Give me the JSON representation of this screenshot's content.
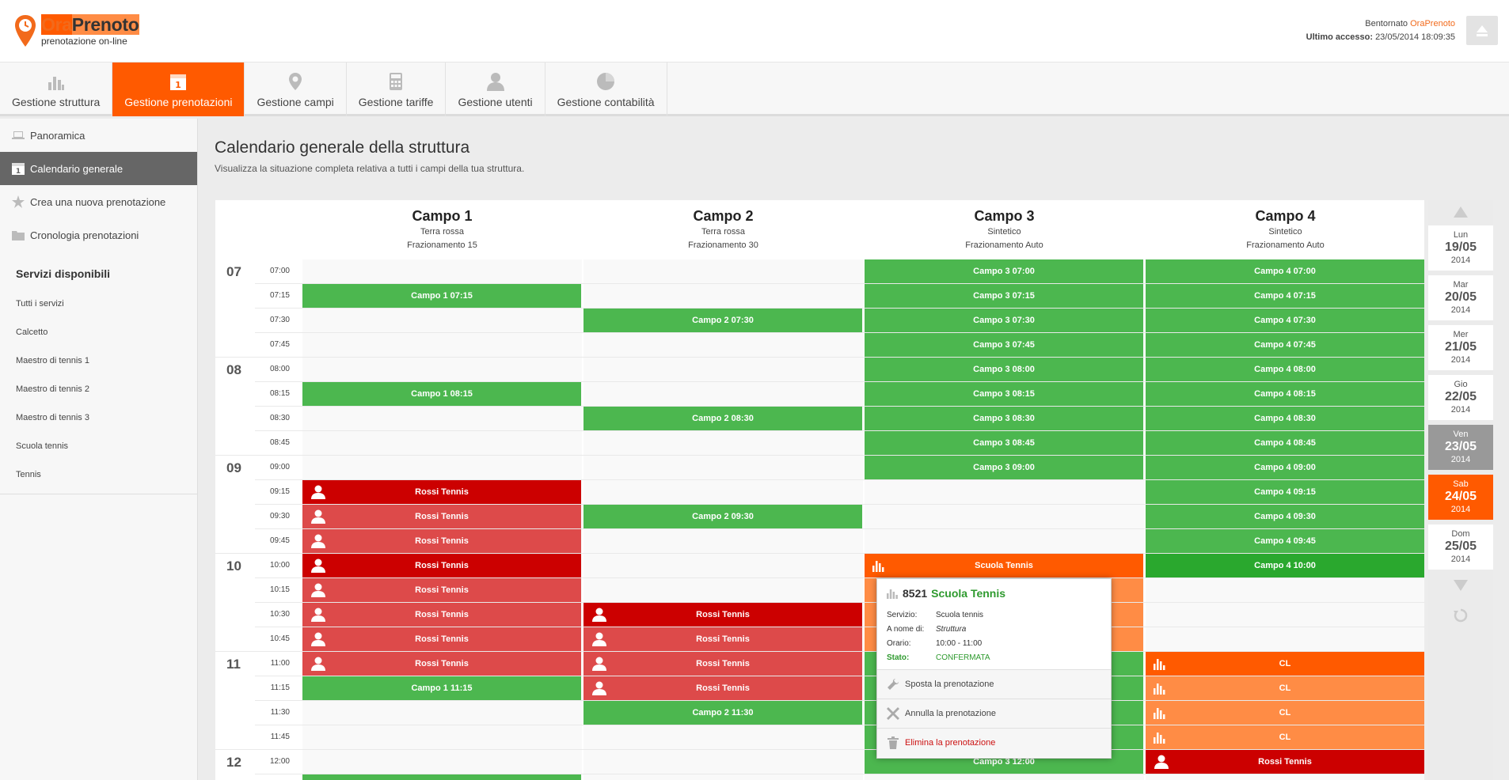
{
  "header": {
    "logo_part1": "Ora",
    "logo_part2": "Prenoto",
    "logo_sub": "prenotazione on-line",
    "welcome_label": "Bentornato",
    "welcome_name": "OraPrenoto",
    "last_access_label": "Ultimo accesso:",
    "last_access_value": "23/05/2014 18:09:35"
  },
  "nav": [
    {
      "label": "Gestione struttura",
      "icon": "bar-chart-icon"
    },
    {
      "label": "Gestione prenotazioni",
      "icon": "calendar-icon"
    },
    {
      "label": "Gestione campi",
      "icon": "map-pin-icon"
    },
    {
      "label": "Gestione tariffe",
      "icon": "calculator-icon"
    },
    {
      "label": "Gestione utenti",
      "icon": "user-icon"
    },
    {
      "label": "Gestione contabilità",
      "icon": "pie-chart-icon"
    }
  ],
  "sidebar": {
    "items": [
      {
        "label": "Panoramica",
        "icon": "laptop-icon"
      },
      {
        "label": "Calendario generale",
        "icon": "calendar-icon"
      },
      {
        "label": "Crea una nuova prenotazione",
        "icon": "star-icon"
      },
      {
        "label": "Cronologia prenotazioni",
        "icon": "folder-icon"
      }
    ],
    "services_title": "Servizi disponibili",
    "services": [
      "Tutti i servizi",
      "Calcetto",
      "Maestro di tennis 1",
      "Maestro di tennis 2",
      "Maestro di tennis 3",
      "Scuola tennis",
      "Tennis"
    ]
  },
  "main": {
    "title": "Calendario generale della struttura",
    "description": "Visualizza la situazione completa relativa a tutti i campi della tua struttura."
  },
  "courts": [
    {
      "name": "Campo 1",
      "surface": "Terra rossa",
      "split": "Frazionamento 15"
    },
    {
      "name": "Campo 2",
      "surface": "Terra rossa",
      "split": "Frazionamento 30"
    },
    {
      "name": "Campo 3",
      "surface": "Sintetico",
      "split": "Frazionamento Auto"
    },
    {
      "name": "Campo 4",
      "surface": "Sintetico",
      "split": "Frazionamento Auto"
    }
  ],
  "hours": [
    "07",
    "08",
    "09",
    "10",
    "11",
    "12"
  ],
  "slots": [
    "07:00",
    "07:15",
    "07:30",
    "07:45",
    "08:00",
    "08:15",
    "08:30",
    "08:45",
    "09:00",
    "09:15",
    "09:30",
    "09:45",
    "10:00",
    "10:15",
    "10:30",
    "10:45",
    "11:00",
    "11:15",
    "11:30",
    "11:45",
    "12:00"
  ],
  "bookings": [
    {
      "court": 1,
      "slot": 1,
      "label": "Campo 1 07:15",
      "color": "g"
    },
    {
      "court": 1,
      "slot": 5,
      "label": "Campo 1 08:15",
      "color": "g"
    },
    {
      "court": 1,
      "slot": 9,
      "label": "Rossi Tennis",
      "color": "r1",
      "icon": "user"
    },
    {
      "court": 1,
      "slot": 10,
      "label": "Rossi Tennis",
      "color": "r2",
      "icon": "user"
    },
    {
      "court": 1,
      "slot": 11,
      "label": "Rossi Tennis",
      "color": "r2",
      "icon": "user"
    },
    {
      "court": 1,
      "slot": 12,
      "label": "Rossi Tennis",
      "color": "r1",
      "icon": "user"
    },
    {
      "court": 1,
      "slot": 13,
      "label": "Rossi Tennis",
      "color": "r2",
      "icon": "user"
    },
    {
      "court": 1,
      "slot": 14,
      "label": "Rossi Tennis",
      "color": "r2",
      "icon": "user"
    },
    {
      "court": 1,
      "slot": 15,
      "label": "Rossi Tennis",
      "color": "r2",
      "icon": "user"
    },
    {
      "court": 1,
      "slot": 16,
      "label": "Rossi Tennis",
      "color": "r2",
      "icon": "user"
    },
    {
      "court": 1,
      "slot": 17,
      "label": "Campo 1 11:15",
      "color": "g"
    },
    {
      "court": 1,
      "slot": 21,
      "label": "",
      "color": "g"
    },
    {
      "court": 2,
      "slot": 2,
      "label": "Campo 2 07:30",
      "color": "g"
    },
    {
      "court": 2,
      "slot": 6,
      "label": "Campo 2 08:30",
      "color": "g"
    },
    {
      "court": 2,
      "slot": 10,
      "label": "Campo 2 09:30",
      "color": "g"
    },
    {
      "court": 2,
      "slot": 14,
      "label": "Rossi Tennis",
      "color": "r1",
      "icon": "user"
    },
    {
      "court": 2,
      "slot": 15,
      "label": "Rossi Tennis",
      "color": "r2",
      "icon": "user"
    },
    {
      "court": 2,
      "slot": 16,
      "label": "Rossi Tennis",
      "color": "r2",
      "icon": "user"
    },
    {
      "court": 2,
      "slot": 17,
      "label": "Rossi Tennis",
      "color": "r2",
      "icon": "user"
    },
    {
      "court": 2,
      "slot": 18,
      "label": "Campo 2 11:30",
      "color": "g"
    },
    {
      "court": 3,
      "slot": 0,
      "label": "Campo 3 07:00",
      "color": "g"
    },
    {
      "court": 3,
      "slot": 1,
      "label": "Campo 3 07:15",
      "color": "g"
    },
    {
      "court": 3,
      "slot": 2,
      "label": "Campo 3 07:30",
      "color": "g"
    },
    {
      "court": 3,
      "slot": 3,
      "label": "Campo 3 07:45",
      "color": "g"
    },
    {
      "court": 3,
      "slot": 4,
      "label": "Campo 3 08:00",
      "color": "g"
    },
    {
      "court": 3,
      "slot": 5,
      "label": "Campo 3 08:15",
      "color": "g"
    },
    {
      "court": 3,
      "slot": 6,
      "label": "Campo 3 08:30",
      "color": "g"
    },
    {
      "court": 3,
      "slot": 7,
      "label": "Campo 3 08:45",
      "color": "g"
    },
    {
      "court": 3,
      "slot": 8,
      "label": "Campo 3 09:00",
      "color": "g"
    },
    {
      "court": 3,
      "slot": 12,
      "label": "Scuola Tennis",
      "color": "o1",
      "icon": "bars"
    },
    {
      "court": 3,
      "slot": 13,
      "label": "",
      "color": "o2"
    },
    {
      "court": 3,
      "slot": 14,
      "label": "",
      "color": "o2"
    },
    {
      "court": 3,
      "slot": 15,
      "label": "",
      "color": "o2"
    },
    {
      "court": 3,
      "slot": 16,
      "label": "",
      "color": "g"
    },
    {
      "court": 3,
      "slot": 17,
      "label": "",
      "color": "g"
    },
    {
      "court": 3,
      "slot": 18,
      "label": "",
      "color": "g"
    },
    {
      "court": 3,
      "slot": 19,
      "label": "",
      "color": "g"
    },
    {
      "court": 3,
      "slot": 20,
      "label": "Campo 3 12:00",
      "color": "g"
    },
    {
      "court": 4,
      "slot": 0,
      "label": "Campo 4 07:00",
      "color": "g"
    },
    {
      "court": 4,
      "slot": 1,
      "label": "Campo 4 07:15",
      "color": "g"
    },
    {
      "court": 4,
      "slot": 2,
      "label": "Campo 4 07:30",
      "color": "g"
    },
    {
      "court": 4,
      "slot": 3,
      "label": "Campo 4 07:45",
      "color": "g"
    },
    {
      "court": 4,
      "slot": 4,
      "label": "Campo 4 08:00",
      "color": "g"
    },
    {
      "court": 4,
      "slot": 5,
      "label": "Campo 4 08:15",
      "color": "g"
    },
    {
      "court": 4,
      "slot": 6,
      "label": "Campo 4 08:30",
      "color": "g"
    },
    {
      "court": 4,
      "slot": 7,
      "label": "Campo 4 08:45",
      "color": "g"
    },
    {
      "court": 4,
      "slot": 8,
      "label": "Campo 4 09:00",
      "color": "g"
    },
    {
      "court": 4,
      "slot": 9,
      "label": "Campo 4 09:15",
      "color": "g"
    },
    {
      "court": 4,
      "slot": 10,
      "label": "Campo 4 09:30",
      "color": "g"
    },
    {
      "court": 4,
      "slot": 11,
      "label": "Campo 4 09:45",
      "color": "g"
    },
    {
      "court": 4,
      "slot": 12,
      "label": "Campo 4 10:00",
      "color": "g2"
    },
    {
      "court": 4,
      "slot": 16,
      "label": "CL",
      "color": "o1",
      "icon": "bars"
    },
    {
      "court": 4,
      "slot": 17,
      "label": "CL",
      "color": "o2",
      "icon": "bars"
    },
    {
      "court": 4,
      "slot": 18,
      "label": "CL",
      "color": "o2",
      "icon": "bars"
    },
    {
      "court": 4,
      "slot": 19,
      "label": "CL",
      "color": "o2",
      "icon": "bars"
    },
    {
      "court": 4,
      "slot": 20,
      "label": "Rossi Tennis",
      "color": "r1",
      "icon": "user"
    }
  ],
  "popup": {
    "number": "8521",
    "service_title": "Scuola Tennis",
    "service_label": "Servizio:",
    "service_value": "Scuola tennis",
    "owner_label": "A nome di:",
    "owner_value": "Struttura",
    "time_label": "Orario:",
    "time_value": "10:00 - 11:00",
    "status_label": "Stato:",
    "status_value": "CONFERMATA",
    "move_label": "Sposta la prenotazione",
    "cancel_label": "Annulla la prenotazione",
    "delete_label": "Elimina la prenotazione"
  },
  "days": [
    {
      "name": "Lun",
      "date": "19/05",
      "year": "2014"
    },
    {
      "name": "Mar",
      "date": "20/05",
      "year": "2014"
    },
    {
      "name": "Mer",
      "date": "21/05",
      "year": "2014"
    },
    {
      "name": "Gio",
      "date": "22/05",
      "year": "2014"
    },
    {
      "name": "Ven",
      "date": "23/05",
      "year": "2014",
      "state": "today"
    },
    {
      "name": "Sab",
      "date": "24/05",
      "year": "2014",
      "state": "selected"
    },
    {
      "name": "Dom",
      "date": "25/05",
      "year": "2014"
    }
  ],
  "colors": {
    "accent": "#ff5a00",
    "green": "#4cb74f",
    "red": "#cc0000"
  }
}
